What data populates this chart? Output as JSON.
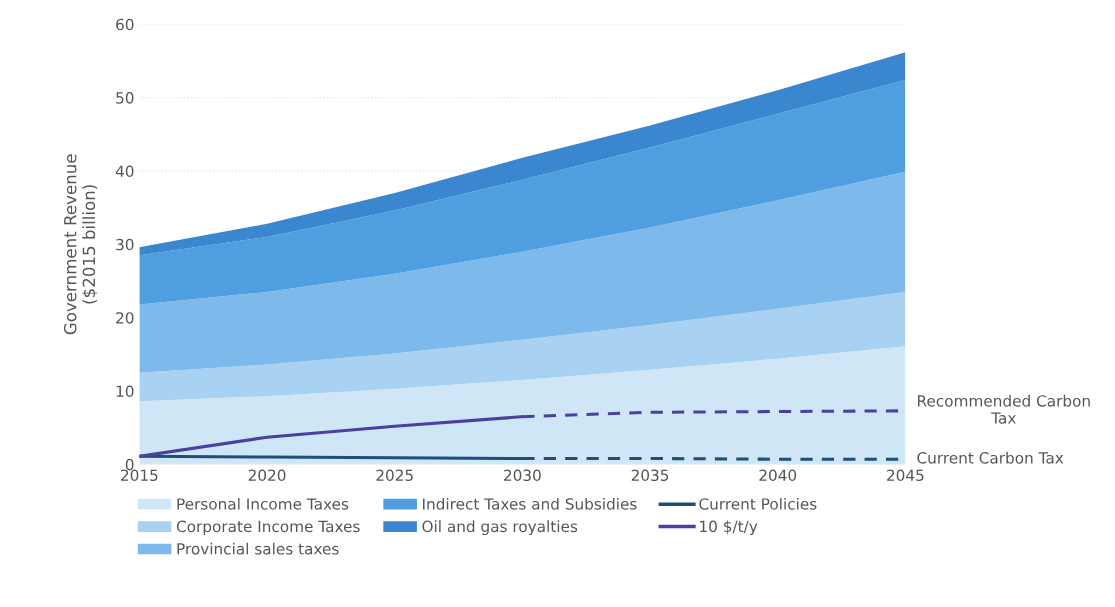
{
  "chart_data": {
    "type": "area",
    "stacked": true,
    "ylabel": "Government Revenue\n($2015 billion)",
    "x": [
      2015,
      2020,
      2025,
      2030,
      2035,
      2040,
      2045
    ],
    "xlim": [
      2015,
      2045
    ],
    "xticks": [
      2015,
      2020,
      2025,
      2030,
      2035,
      2040,
      2045
    ],
    "ylim": [
      0,
      60
    ],
    "yticks": [
      0,
      10,
      20,
      30,
      40,
      50,
      60
    ],
    "grid": "y",
    "legend": "bottom",
    "series": [
      {
        "name": "Personal Income Taxes",
        "color": "#cfe6f7",
        "values": [
          8.6,
          9.3,
          10.3,
          11.5,
          12.9,
          14.4,
          16.1
        ]
      },
      {
        "name": "Corporate Income Taxes",
        "color": "#a9d1f2",
        "values": [
          3.9,
          4.3,
          4.8,
          5.5,
          6.1,
          6.8,
          7.4
        ]
      },
      {
        "name": "Provincial sales taxes",
        "color": "#7db9ea",
        "values": [
          9.3,
          9.9,
          10.9,
          12.0,
          13.3,
          14.8,
          16.4
        ]
      },
      {
        "name": "Indirect Taxes and Subsidies",
        "color": "#4f9fe0",
        "values": [
          6.7,
          7.5,
          8.6,
          9.8,
          10.9,
          11.8,
          12.5
        ]
      },
      {
        "name": "Oil and gas royalties",
        "color": "#3a87d0",
        "values": [
          1.1,
          1.8,
          2.4,
          3.0,
          3.0,
          3.2,
          3.8
        ]
      },
      {
        "name": "Current Policies",
        "type": "line",
        "color": "#1f4e79",
        "line_style": "solid",
        "x": [
          2015,
          2020,
          2025,
          2030
        ],
        "values": [
          1.1,
          1.0,
          0.9,
          0.8
        ]
      },
      {
        "name": "10 $/t/y",
        "type": "line",
        "color": "#4b3fa0",
        "line_style": "solid",
        "x": [
          2015,
          2020,
          2025,
          2030
        ],
        "values": [
          1.1,
          3.7,
          5.2,
          6.5
        ]
      },
      {
        "type": "line",
        "color": "#1f4e79",
        "line_style": "dashed",
        "x": [
          2030,
          2035,
          2040,
          2045
        ],
        "values": [
          0.8,
          0.8,
          0.7,
          0.7
        ]
      },
      {
        "type": "line",
        "color": "#4b3fa0",
        "line_style": "dashed",
        "x": [
          2030,
          2035,
          2040,
          2045
        ],
        "values": [
          6.5,
          7.1,
          7.2,
          7.3
        ]
      }
    ],
    "annotations": [
      {
        "text": "Recommended Carbon\nTax",
        "x": 2045,
        "y": 7.3
      },
      {
        "text": "Current Carbon Tax",
        "x": 2045,
        "y": 0.7
      }
    ]
  }
}
